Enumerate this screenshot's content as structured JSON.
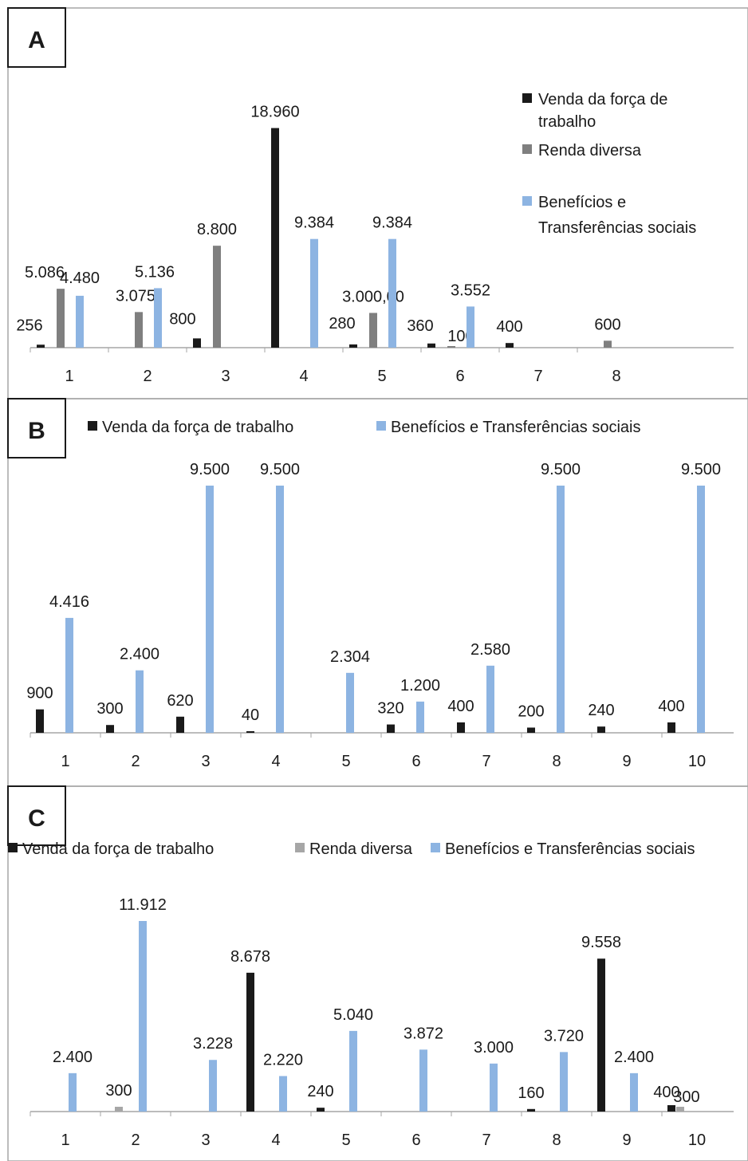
{
  "colors": {
    "venda": "#1a1a1a",
    "renda": "#7f7f7f",
    "beneficios": "#8db4e2",
    "axis": "#a6a6a6",
    "panel_border": "#a6a6a6",
    "text": "#1a1a1a"
  },
  "chart_data": [
    {
      "type": "bar",
      "panel_label": "A",
      "legend_position": "right",
      "categories": [
        "1",
        "2",
        "3",
        "4",
        "5",
        "6",
        "7",
        "8"
      ],
      "series": [
        {
          "name": "Venda da força de trabalho",
          "color": "#1a1a1a",
          "values": [
            256,
            null,
            800,
            18960,
            280,
            360,
            400,
            null
          ]
        },
        {
          "name": "Renda diversa",
          "color": "#7f7f7f",
          "values": [
            5086,
            3075,
            8800,
            null,
            3000,
            100,
            null,
            600
          ]
        },
        {
          "name": "Benefícios e Transferências sociais",
          "color": "#8db4e2",
          "values": [
            4480,
            5136,
            null,
            9384,
            9384,
            3552,
            null,
            null
          ]
        }
      ],
      "data_labels": [
        [
          "256",
          "",
          "800",
          "18.960",
          "280",
          "360",
          "400",
          ""
        ],
        [
          "5.086",
          "3.075",
          "8.800",
          "",
          "3.000,00",
          "100",
          "",
          "600"
        ],
        [
          "4.480",
          "5.136",
          "",
          "9.384",
          "9.384",
          "3.552",
          "",
          ""
        ]
      ],
      "ylim": [
        0,
        19000
      ],
      "grid": false
    },
    {
      "type": "bar",
      "panel_label": "B",
      "legend_position": "top",
      "categories": [
        "1",
        "2",
        "3",
        "4",
        "5",
        "6",
        "7",
        "8",
        "9",
        "10"
      ],
      "series": [
        {
          "name": "Venda da força de trabalho",
          "color": "#1a1a1a",
          "values": [
            900,
            300,
            620,
            40,
            null,
            320,
            400,
            200,
            240,
            400
          ]
        },
        {
          "name": "Benefícios e Transferências sociais",
          "color": "#8db4e2",
          "values": [
            4416,
            2400,
            9500,
            9500,
            2304,
            1200,
            2580,
            9500,
            null,
            9500
          ]
        }
      ],
      "data_labels": [
        [
          "900",
          "300",
          "620",
          "40",
          "",
          "320",
          "400",
          "200",
          "240",
          "400"
        ],
        [
          "4.416",
          "2.400",
          "9.500",
          "9.500",
          "2.304",
          "1.200",
          "2.580",
          "9.500",
          "",
          "9.500"
        ]
      ],
      "ylim": [
        0,
        9500
      ],
      "grid": false
    },
    {
      "type": "bar",
      "panel_label": "C",
      "legend_position": "top",
      "categories": [
        "1",
        "2",
        "3",
        "4",
        "5",
        "6",
        "7",
        "8",
        "9",
        "10"
      ],
      "series": [
        {
          "name": "Venda da força de trabalho",
          "color": "#1a1a1a",
          "values": [
            null,
            null,
            null,
            8678,
            240,
            null,
            null,
            160,
            9558,
            400
          ]
        },
        {
          "name": "Renda diversa",
          "color": "#a6a6a6",
          "values": [
            null,
            300,
            null,
            null,
            null,
            null,
            null,
            null,
            null,
            300
          ]
        },
        {
          "name": "Benefícios e Transferências sociais",
          "color": "#8db4e2",
          "values": [
            2400,
            11912,
            3228,
            2220,
            5040,
            3872,
            3000,
            3720,
            2400,
            null
          ]
        }
      ],
      "data_labels": [
        [
          "",
          "",
          "",
          "8.678",
          "240",
          "",
          "",
          "160",
          "9.558",
          "400"
        ],
        [
          "",
          "300",
          "",
          "",
          "",
          "",
          "",
          "",
          "",
          "300"
        ],
        [
          "2.400",
          "11.912",
          "3.228",
          "2.220",
          "5.040",
          "3.872",
          "3.000",
          "3.720",
          "2.400",
          ""
        ]
      ],
      "ylim": [
        0,
        11912
      ],
      "grid": false
    }
  ]
}
